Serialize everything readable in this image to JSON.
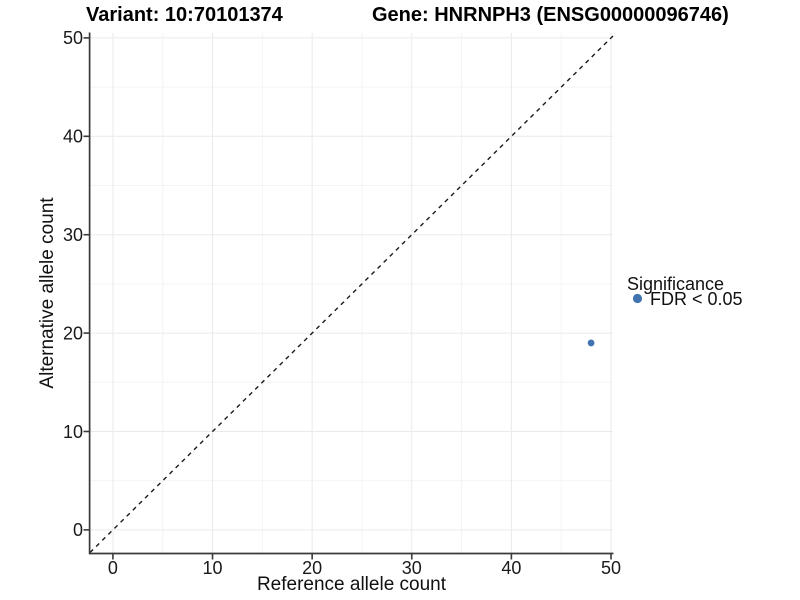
{
  "chart_data": {
    "type": "scatter",
    "titles": {
      "left": "Variant: 10:70101374",
      "right": "Gene: HNRNPH3 (ENSG00000096746)"
    },
    "xlabel": "Reference allele count",
    "ylabel": "Alternative allele count",
    "x_ticks": [
      0,
      10,
      20,
      30,
      40,
      50
    ],
    "y_ticks": [
      0,
      10,
      20,
      30,
      40,
      50
    ],
    "x_minor_ticks": [
      5,
      15,
      25,
      35,
      45
    ],
    "y_minor_ticks": [
      5,
      15,
      25,
      35,
      45
    ],
    "xlim": [
      -2.3,
      50.2
    ],
    "ylim": [
      -2.35,
      50.5
    ],
    "grid": {
      "major": true,
      "minor": true
    },
    "series": [
      {
        "name": "FDR < 0.05",
        "color": "#4173B0",
        "points": [
          {
            "x": 48,
            "y": 19
          }
        ]
      }
    ],
    "reference_line": {
      "kind": "identity y=x",
      "style": "dashed",
      "x1": -2.3,
      "y1": -2.3,
      "x2": 50.2,
      "y2": 50.2
    },
    "legend": {
      "title": "Significance",
      "position": "right",
      "entries": [
        {
          "label": "FDR < 0.05",
          "color": "#4173B0",
          "marker": "circle"
        }
      ]
    },
    "colors": {
      "point": "#4173B0",
      "axis_line": "#3a3a3a",
      "tick_text": "#1a1a1a",
      "grid_major": "#eaeaea",
      "grid_minor": "#f4f4f4",
      "dashed_line": "#1a1a1a",
      "background": "#ffffff"
    }
  }
}
